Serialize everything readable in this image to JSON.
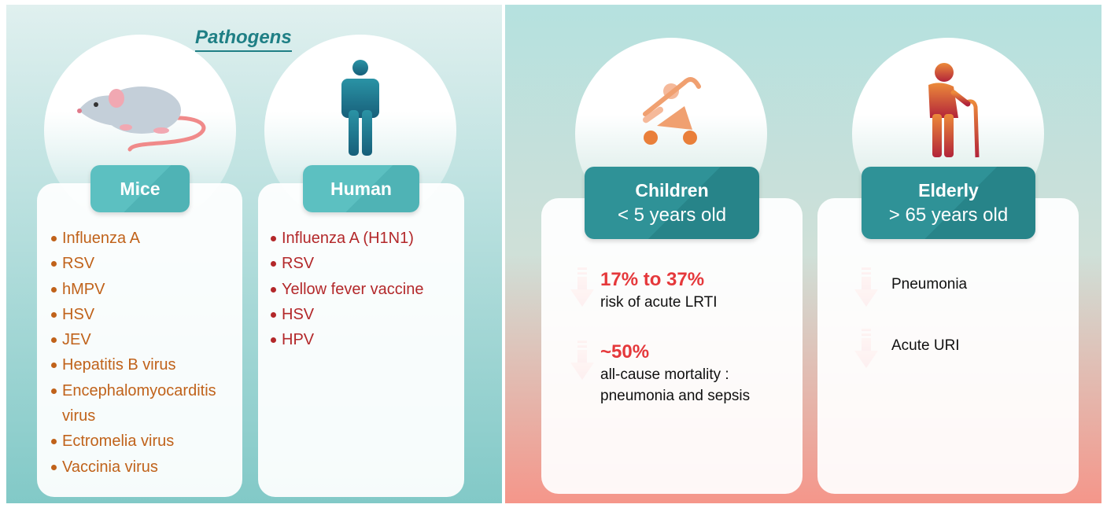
{
  "pathogens": {
    "title": "Pathogens",
    "groups": [
      {
        "label": "Mice",
        "items": [
          "Influenza A",
          "RSV",
          "hMPV",
          "HSV",
          "JEV",
          "Hepatitis B virus",
          "Encephalomyocarditis virus",
          "Ectromelia virus",
          "Vaccinia virus"
        ]
      },
      {
        "label": "Human",
        "items": [
          "Influenza A (H1N1)",
          "RSV",
          "Yellow fever vaccine",
          "HSV",
          "HPV"
        ]
      }
    ]
  },
  "populations": [
    {
      "label": "Children",
      "sublabel": "< 5 years old",
      "effects": [
        {
          "value": "17% to 37%",
          "text": "risk of acute LRTI"
        },
        {
          "value": "~50%",
          "text": "all-cause mortality : pneumonia and sepsis"
        }
      ]
    },
    {
      "label": "Elderly",
      "sublabel": "> 65 years old",
      "effects": [
        {
          "text": "Pneumonia"
        },
        {
          "text": "Acute URI"
        }
      ]
    }
  ]
}
